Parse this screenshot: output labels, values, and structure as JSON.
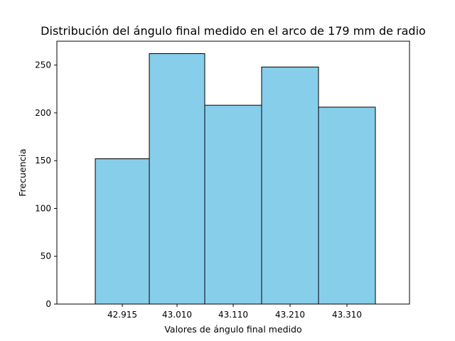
{
  "chart_data": {
    "type": "bar",
    "title": "Distribución del ángulo final medido en el arco de 179 mm de radio",
    "xlabel": "Valores de ángulo final medido",
    "ylabel": "Frecuencia",
    "categories": [
      "42.915",
      "43.010",
      "43.110",
      "43.210",
      "43.310"
    ],
    "bin_edges": [
      42.8675,
      42.9625,
      43.06,
      43.16,
      43.26,
      43.36
    ],
    "values": [
      152,
      262,
      208,
      248,
      206
    ],
    "xlim": [
      42.8,
      43.42
    ],
    "ylim": [
      0,
      275
    ],
    "yticks": [
      0,
      50,
      100,
      150,
      200,
      250
    ],
    "grid": false,
    "colors": {
      "bar_fill": "#87ceeb",
      "bar_edge": "#000000"
    }
  }
}
